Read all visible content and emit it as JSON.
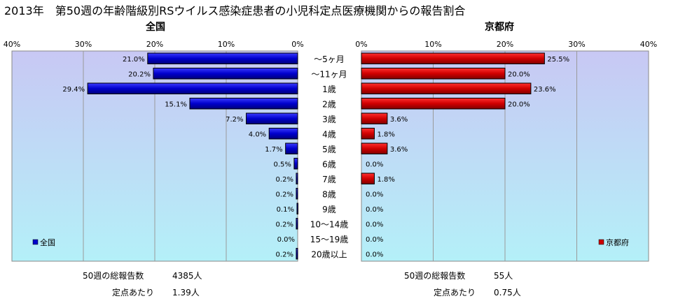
{
  "page": {
    "title": "2013年　第50週の年齢階級別RSウイルス感染症患者の小児科定点医療機関からの報告割合"
  },
  "categories": [
    "〜5ヶ月",
    "〜11ヶ月",
    "1歳",
    "2歳",
    "3歳",
    "4歳",
    "5歳",
    "6歳",
    "7歳",
    "8歳",
    "9歳",
    "10〜14歳",
    "15〜19歳",
    "20歳以上"
  ],
  "chart_data": [
    {
      "type": "bar",
      "orientation": "horizontal",
      "direction": "right-to-left",
      "title": "全国",
      "xlim": [
        0,
        40
      ],
      "ticks": [
        "40%",
        "30%",
        "20%",
        "10%",
        "0%"
      ],
      "grid": true,
      "legend": {
        "label": "全国",
        "placement": "bottom-left"
      },
      "series": [
        {
          "name": "全国",
          "color": "#0000cc",
          "values": [
            21.0,
            20.2,
            29.4,
            15.1,
            7.2,
            4.0,
            1.7,
            0.5,
            0.2,
            0.2,
            0.1,
            0.2,
            0.0,
            0.2
          ],
          "labels": [
            "21.0%",
            "20.2%",
            "29.4%",
            "15.1%",
            "7.2%",
            "4.0%",
            "1.7%",
            "0.5%",
            "0.2%",
            "0.2%",
            "0.1%",
            "0.2%",
            "0.0%",
            "0.2%"
          ]
        }
      ]
    },
    {
      "type": "bar",
      "orientation": "horizontal",
      "direction": "left-to-right",
      "title": "京都府",
      "xlim": [
        0,
        40
      ],
      "ticks": [
        "0%",
        "10%",
        "20%",
        "30%",
        "40%"
      ],
      "grid": true,
      "legend": {
        "label": "京都府",
        "placement": "bottom-right"
      },
      "series": [
        {
          "name": "京都府",
          "color": "#cc0000",
          "values": [
            25.5,
            20.0,
            23.6,
            20.0,
            3.6,
            1.8,
            3.6,
            0.0,
            1.8,
            0.0,
            0.0,
            0.0,
            0.0,
            0.0
          ],
          "labels": [
            "25.5%",
            "20.0%",
            "23.6%",
            "20.0%",
            "3.6%",
            "1.8%",
            "3.6%",
            "0.0%",
            "1.8%",
            "0.0%",
            "0.0%",
            "0.0%",
            "0.0%",
            "0.0%"
          ]
        }
      ]
    }
  ],
  "stats": {
    "national": {
      "total_label": "50週の総報告数",
      "total_value": "4385人",
      "per_label": "定点あたり",
      "per_value": "1.39人"
    },
    "kyoto": {
      "total_label": "50週の総報告数",
      "total_value": "55人",
      "per_label": "定点あたり",
      "per_value": "0.75人"
    }
  },
  "colors": {
    "plot_top": "#c8c8f4",
    "plot_bottom": "#b4f0f8",
    "grid": "#9a9a9a"
  }
}
